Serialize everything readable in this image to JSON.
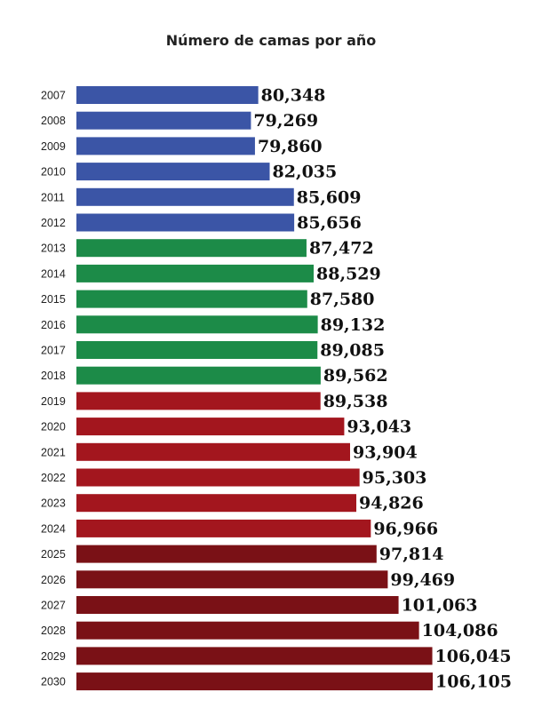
{
  "chart_data": {
    "type": "bar",
    "orientation": "horizontal",
    "title": "Número de camas por año",
    "xlabel": "",
    "ylabel": "",
    "grid": false,
    "legend": "none",
    "xlim": [
      53500,
      106105
    ],
    "categories": [
      "2007",
      "2008",
      "2009",
      "2010",
      "2011",
      "2012",
      "2013",
      "2014",
      "2015",
      "2016",
      "2017",
      "2018",
      "2019",
      "2020",
      "2021",
      "2022",
      "2023",
      "2024",
      "2025",
      "2026",
      "2027",
      "2028",
      "2029",
      "2030"
    ],
    "values": [
      80348,
      79269,
      79860,
      82035,
      85609,
      85656,
      87472,
      88529,
      87580,
      89132,
      89085,
      89562,
      89538,
      93043,
      93904,
      95303,
      94826,
      96966,
      97814,
      99469,
      101063,
      104086,
      106045,
      106105
    ],
    "value_labels": [
      "80,348",
      "79,269",
      "79,860",
      "82,035",
      "85,609",
      "85,656",
      "87,472",
      "88,529",
      "87,580",
      "89,132",
      "89,085",
      "89,562",
      "89,538",
      "93,043",
      "93,904",
      "95,303",
      "94,826",
      "96,966",
      "97,814",
      "99,469",
      "101,063",
      "104,086",
      "106,045",
      "106,105"
    ],
    "bar_colors": [
      "#3b55a6",
      "#3b55a6",
      "#3b55a6",
      "#3b55a6",
      "#3b55a6",
      "#3b55a6",
      "#1c8b48",
      "#1c8b48",
      "#1c8b48",
      "#1c8b48",
      "#1c8b48",
      "#1c8b48",
      "#a3161e",
      "#a3161e",
      "#a3161e",
      "#a3161e",
      "#a3161e",
      "#a3161e",
      "#7a1116",
      "#7a1116",
      "#7a1116",
      "#7a1116",
      "#7a1116",
      "#7a1116"
    ]
  }
}
